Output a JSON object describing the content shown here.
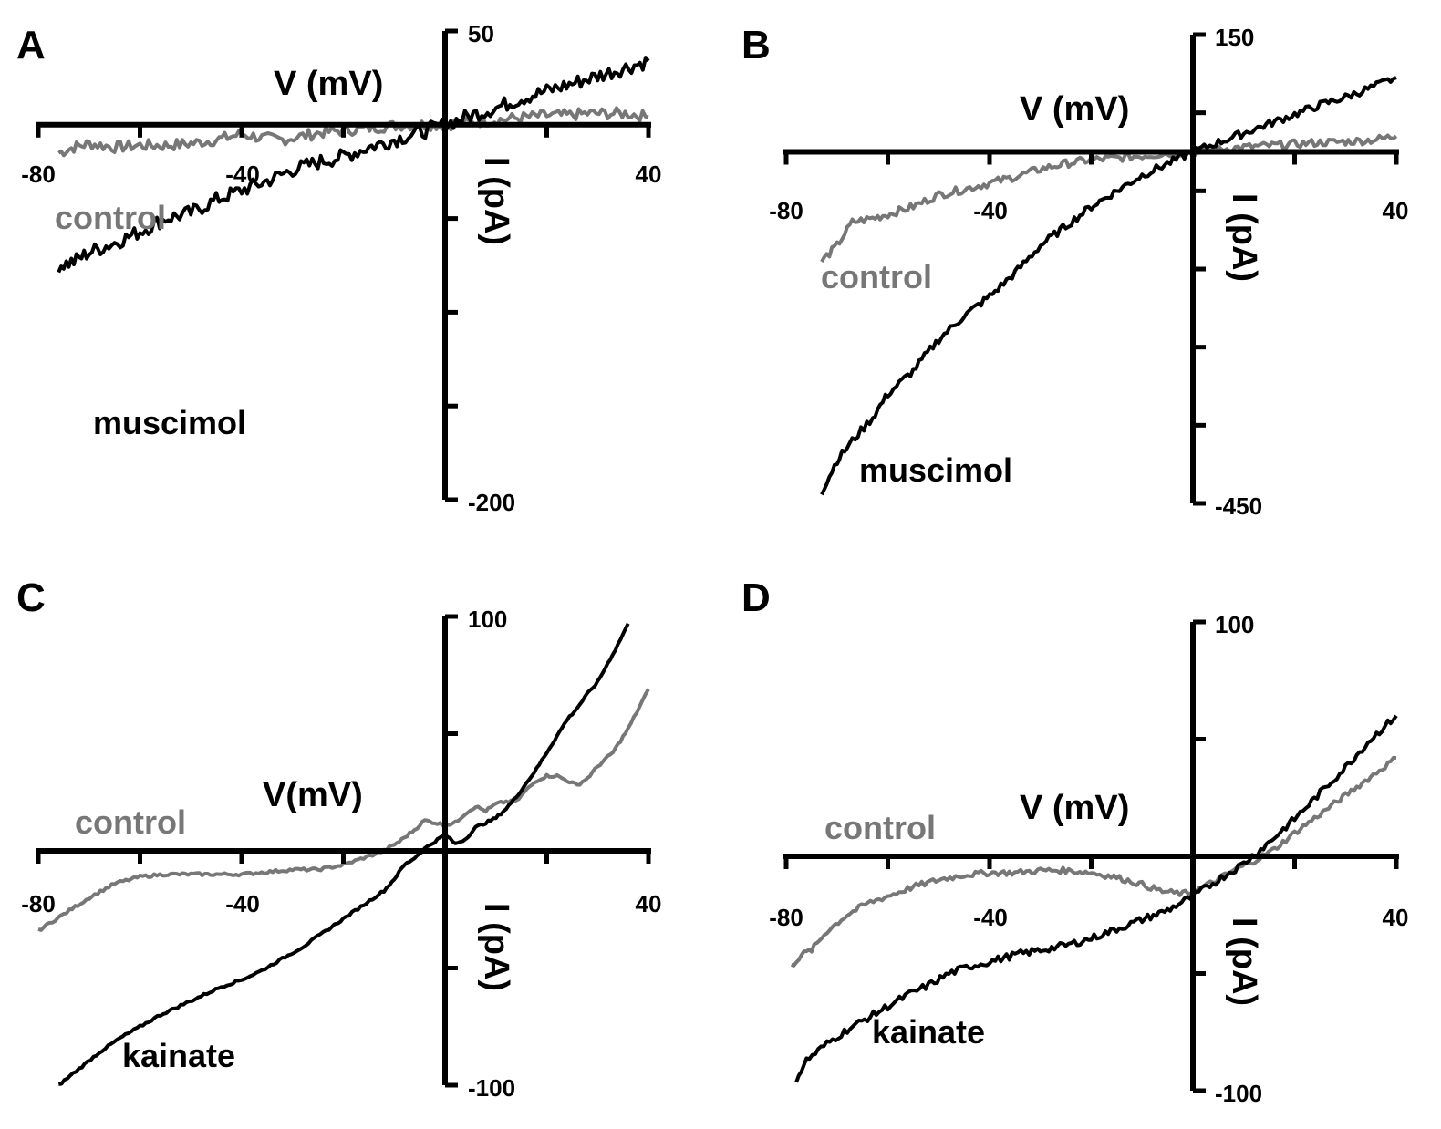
{
  "colors": {
    "background": "#ffffff",
    "axis": "#000000",
    "drug_trace": "#000000",
    "control_trace": "#777777"
  },
  "chart_data": [
    {
      "panel": "A",
      "type": "line",
      "xlabel": "V (mV)",
      "ylabel": "I (pA)",
      "x_tick_labels": [
        "-80",
        "-40",
        "40"
      ],
      "y_tick_labels": [
        "50",
        "-200"
      ],
      "xlim": [
        -80,
        40
      ],
      "ylim": [
        -200,
        50
      ],
      "y_tick_step": 50,
      "series": [
        {
          "name": "control",
          "color": "#777777",
          "noise": 3,
          "points": [
            [
              -76,
              -15
            ],
            [
              -73,
              -12
            ],
            [
              -70,
              -10
            ],
            [
              -65,
              -12
            ],
            [
              -60,
              -11
            ],
            [
              -55,
              -11
            ],
            [
              -50,
              -10
            ],
            [
              -45,
              -8
            ],
            [
              -40,
              -5
            ],
            [
              -36,
              -7
            ],
            [
              -32,
              -8
            ],
            [
              -28,
              -6
            ],
            [
              -24,
              -4
            ],
            [
              -20,
              -3
            ],
            [
              -16,
              -2
            ],
            [
              -12,
              -1
            ],
            [
              -8,
              0
            ],
            [
              -4,
              0
            ],
            [
              0,
              0
            ],
            [
              4,
              1
            ],
            [
              8,
              2
            ],
            [
              12,
              3
            ],
            [
              16,
              4
            ],
            [
              20,
              5
            ],
            [
              24,
              5
            ],
            [
              28,
              6
            ],
            [
              32,
              6
            ],
            [
              36,
              6
            ],
            [
              40,
              4
            ]
          ]
        },
        {
          "name": "muscimol",
          "color": "#000000",
          "noise": 4,
          "points": [
            [
              -76,
              -75
            ],
            [
              -73,
              -73
            ],
            [
              -70,
              -68
            ],
            [
              -65,
              -63
            ],
            [
              -60,
              -57
            ],
            [
              -55,
              -50
            ],
            [
              -50,
              -47
            ],
            [
              -45,
              -40
            ],
            [
              -40,
              -35
            ],
            [
              -35,
              -30
            ],
            [
              -30,
              -24
            ],
            [
              -25,
              -20
            ],
            [
              -20,
              -17
            ],
            [
              -15,
              -12
            ],
            [
              -10,
              -8
            ],
            [
              -5,
              -4
            ],
            [
              0,
              0
            ],
            [
              5,
              5
            ],
            [
              10,
              9
            ],
            [
              15,
              14
            ],
            [
              20,
              18
            ],
            [
              25,
              22
            ],
            [
              30,
              26
            ],
            [
              35,
              30
            ],
            [
              40,
              34
            ]
          ]
        }
      ]
    },
    {
      "panel": "B",
      "type": "line",
      "xlabel": "V (mV)",
      "ylabel": "I (pA)",
      "x_tick_labels": [
        "-80",
        "-40",
        "40"
      ],
      "y_tick_labels": [
        "150",
        "-450"
      ],
      "xlim": [
        -80,
        40
      ],
      "ylim": [
        -450,
        150
      ],
      "y_tick_step": 100,
      "series": [
        {
          "name": "control",
          "color": "#777777",
          "noise": 5,
          "points": [
            [
              -73,
              -140
            ],
            [
              -70,
              -120
            ],
            [
              -67,
              -90
            ],
            [
              -63,
              -85
            ],
            [
              -60,
              -80
            ],
            [
              -55,
              -70
            ],
            [
              -50,
              -55
            ],
            [
              -45,
              -48
            ],
            [
              -40,
              -40
            ],
            [
              -35,
              -32
            ],
            [
              -30,
              -22
            ],
            [
              -25,
              -15
            ],
            [
              -20,
              -10
            ],
            [
              -15,
              -8
            ],
            [
              -10,
              -5
            ],
            [
              -5,
              -2
            ],
            [
              0,
              0
            ],
            [
              5,
              3
            ],
            [
              10,
              6
            ],
            [
              15,
              8
            ],
            [
              20,
              10
            ],
            [
              25,
              12
            ],
            [
              30,
              13
            ],
            [
              35,
              15
            ],
            [
              40,
              20
            ]
          ]
        },
        {
          "name": "muscimol",
          "color": "#000000",
          "noise": 5,
          "points": [
            [
              -73,
              -435
            ],
            [
              -70,
              -395
            ],
            [
              -67,
              -370
            ],
            [
              -63,
              -340
            ],
            [
              -60,
              -310
            ],
            [
              -55,
              -280
            ],
            [
              -50,
              -240
            ],
            [
              -45,
              -210
            ],
            [
              -40,
              -185
            ],
            [
              -35,
              -155
            ],
            [
              -30,
              -120
            ],
            [
              -25,
              -95
            ],
            [
              -20,
              -70
            ],
            [
              -15,
              -50
            ],
            [
              -10,
              -30
            ],
            [
              -5,
              -15
            ],
            [
              0,
              0
            ],
            [
              5,
              12
            ],
            [
              10,
              24
            ],
            [
              15,
              36
            ],
            [
              20,
              48
            ],
            [
              25,
              60
            ],
            [
              30,
              70
            ],
            [
              35,
              82
            ],
            [
              40,
              95
            ]
          ]
        }
      ]
    },
    {
      "panel": "C",
      "type": "line",
      "xlabel": "V(mV)",
      "ylabel": "I (pA)",
      "x_tick_labels": [
        "-80",
        "-40",
        "40"
      ],
      "y_tick_labels": [
        "100",
        "-100"
      ],
      "xlim": [
        -80,
        40
      ],
      "ylim": [
        -100,
        100
      ],
      "y_tick_step": 50,
      "series": [
        {
          "name": "control",
          "color": "#777777",
          "noise": 0.6,
          "points": [
            [
              -80,
              -34
            ],
            [
              -75,
              -27
            ],
            [
              -70,
              -20
            ],
            [
              -65,
              -14
            ],
            [
              -60,
              -11
            ],
            [
              -55,
              -10
            ],
            [
              -50,
              -10
            ],
            [
              -45,
              -10
            ],
            [
              -40,
              -10
            ],
            [
              -35,
              -9
            ],
            [
              -30,
              -8
            ],
            [
              -25,
              -8
            ],
            [
              -20,
              -6
            ],
            [
              -16,
              -3
            ],
            [
              -12,
              0
            ],
            [
              -9,
              4
            ],
            [
              -6,
              9
            ],
            [
              -4,
              13
            ],
            [
              -2,
              12
            ],
            [
              0,
              11
            ],
            [
              2,
              12
            ],
            [
              4,
              16
            ],
            [
              6,
              19
            ],
            [
              8,
              17
            ],
            [
              10,
              20
            ],
            [
              12,
              21
            ],
            [
              14,
              21
            ],
            [
              16,
              26
            ],
            [
              18,
              30
            ],
            [
              20,
              32
            ],
            [
              22,
              32
            ],
            [
              24,
              30
            ],
            [
              26,
              28
            ],
            [
              28,
              31
            ],
            [
              30,
              36
            ],
            [
              33,
              42
            ],
            [
              36,
              52
            ],
            [
              40,
              69
            ]
          ]
        },
        {
          "name": "kainate",
          "color": "#000000",
          "noise": 0.5,
          "points": [
            [
              -76,
              -100
            ],
            [
              -72,
              -93
            ],
            [
              -68,
              -86
            ],
            [
              -64,
              -80
            ],
            [
              -60,
              -75
            ],
            [
              -56,
              -70
            ],
            [
              -52,
              -66
            ],
            [
              -48,
              -62
            ],
            [
              -44,
              -58
            ],
            [
              -40,
              -55
            ],
            [
              -36,
              -51
            ],
            [
              -32,
              -46
            ],
            [
              -28,
              -41
            ],
            [
              -24,
              -35
            ],
            [
              -20,
              -29
            ],
            [
              -16,
              -23
            ],
            [
              -12,
              -17
            ],
            [
              -10,
              -12
            ],
            [
              -8,
              -6
            ],
            [
              -6,
              -3
            ],
            [
              -4,
              1
            ],
            [
              -2,
              4
            ],
            [
              0,
              7
            ],
            [
              2,
              3
            ],
            [
              4,
              5
            ],
            [
              6,
              10
            ],
            [
              8,
              12
            ],
            [
              10,
              14
            ],
            [
              12,
              18
            ],
            [
              14,
              23
            ],
            [
              16,
              29
            ],
            [
              18,
              35
            ],
            [
              20,
              42
            ],
            [
              22,
              49
            ],
            [
              24,
              56
            ],
            [
              26,
              61
            ],
            [
              28,
              67
            ],
            [
              30,
              72
            ],
            [
              32,
              80
            ],
            [
              34,
              88
            ],
            [
              36,
              97
            ]
          ]
        }
      ]
    },
    {
      "panel": "D",
      "type": "line",
      "xlabel": "V (mV)",
      "ylabel": "I (pA)",
      "x_tick_labels": [
        "-80",
        "-40",
        "40"
      ],
      "y_tick_labels": [
        "100",
        "-100"
      ],
      "xlim": [
        -80,
        40
      ],
      "ylim": [
        -100,
        100
      ],
      "y_tick_step": 50,
      "series": [
        {
          "name": "control",
          "color": "#777777",
          "noise": 1.2,
          "points": [
            [
              -79,
              -47
            ],
            [
              -77,
              -42
            ],
            [
              -75,
              -40
            ],
            [
              -72,
              -32
            ],
            [
              -68,
              -25
            ],
            [
              -64,
              -20
            ],
            [
              -60,
              -17
            ],
            [
              -55,
              -13
            ],
            [
              -50,
              -10
            ],
            [
              -45,
              -8
            ],
            [
              -40,
              -7
            ],
            [
              -35,
              -7
            ],
            [
              -30,
              -6
            ],
            [
              -25,
              -6
            ],
            [
              -20,
              -7
            ],
            [
              -15,
              -9
            ],
            [
              -10,
              -12
            ],
            [
              -6,
              -15
            ],
            [
              -2,
              -16
            ],
            [
              0,
              -15
            ],
            [
              4,
              -11
            ],
            [
              8,
              -6
            ],
            [
              12,
              -2
            ],
            [
              16,
              3
            ],
            [
              20,
              10
            ],
            [
              25,
              18
            ],
            [
              30,
              26
            ],
            [
              35,
              34
            ],
            [
              40,
              42
            ]
          ]
        },
        {
          "name": "kainate",
          "color": "#000000",
          "noise": 1.5,
          "points": [
            [
              -78,
              -95
            ],
            [
              -76,
              -87
            ],
            [
              -72,
              -80
            ],
            [
              -68,
              -74
            ],
            [
              -64,
              -69
            ],
            [
              -60,
              -64
            ],
            [
              -56,
              -59
            ],
            [
              -52,
              -55
            ],
            [
              -48,
              -50
            ],
            [
              -44,
              -47
            ],
            [
              -40,
              -45
            ],
            [
              -35,
              -42
            ],
            [
              -30,
              -40
            ],
            [
              -25,
              -38
            ],
            [
              -20,
              -35
            ],
            [
              -15,
              -31
            ],
            [
              -10,
              -27
            ],
            [
              -5,
              -23
            ],
            [
              0,
              -17
            ],
            [
              5,
              -10
            ],
            [
              10,
              -3
            ],
            [
              15,
              6
            ],
            [
              20,
              16
            ],
            [
              25,
              27
            ],
            [
              30,
              38
            ],
            [
              35,
              50
            ],
            [
              40,
              60
            ]
          ]
        }
      ]
    }
  ]
}
